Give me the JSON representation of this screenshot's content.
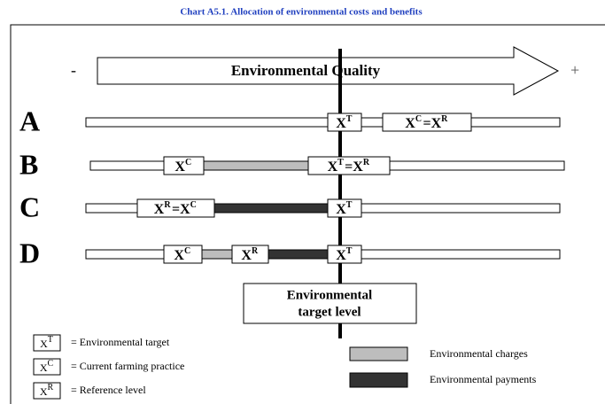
{
  "title": "Chart A5.1. Allocation of environmental costs and benefits",
  "arrow": {
    "minus": "-",
    "label": "Environmental Quality",
    "plus": "+"
  },
  "rows": [
    {
      "label": "A",
      "boxes": [
        {
          "terms": [
            {
              "base": "X",
              "sup": "T"
            }
          ]
        },
        {
          "terms": [
            {
              "base": "X",
              "sup": "C"
            },
            {
              "base": "X",
              "sup": "R"
            }
          ],
          "sep": "="
        }
      ]
    },
    {
      "label": "B",
      "boxes": [
        {
          "terms": [
            {
              "base": "X",
              "sup": "C"
            }
          ]
        },
        {
          "terms": [
            {
              "base": "X",
              "sup": "T"
            },
            {
              "base": "X",
              "sup": "R"
            }
          ],
          "sep": "="
        }
      ]
    },
    {
      "label": "C",
      "boxes": [
        {
          "terms": [
            {
              "base": "X",
              "sup": "R"
            },
            {
              "base": "X",
              "sup": "C"
            }
          ],
          "sep": "="
        },
        {
          "terms": [
            {
              "base": "X",
              "sup": "T"
            }
          ]
        }
      ]
    },
    {
      "label": "D",
      "boxes": [
        {
          "terms": [
            {
              "base": "X",
              "sup": "C"
            }
          ]
        },
        {
          "terms": [
            {
              "base": "X",
              "sup": "R"
            }
          ]
        },
        {
          "terms": [
            {
              "base": "X",
              "sup": "T"
            }
          ]
        }
      ]
    }
  ],
  "target": [
    "Environmental",
    "target level"
  ],
  "legend": [
    {
      "symbol": {
        "base": "X",
        "sup": "T"
      },
      "text": "= Environmental target"
    },
    {
      "symbol": {
        "base": "X",
        "sup": "C"
      },
      "text": "= Current farming practice"
    },
    {
      "symbol": {
        "base": "X",
        "sup": "R"
      },
      "text": "= Reference level"
    }
  ],
  "fills": [
    "Environmental charges",
    "Environmental payments"
  ]
}
